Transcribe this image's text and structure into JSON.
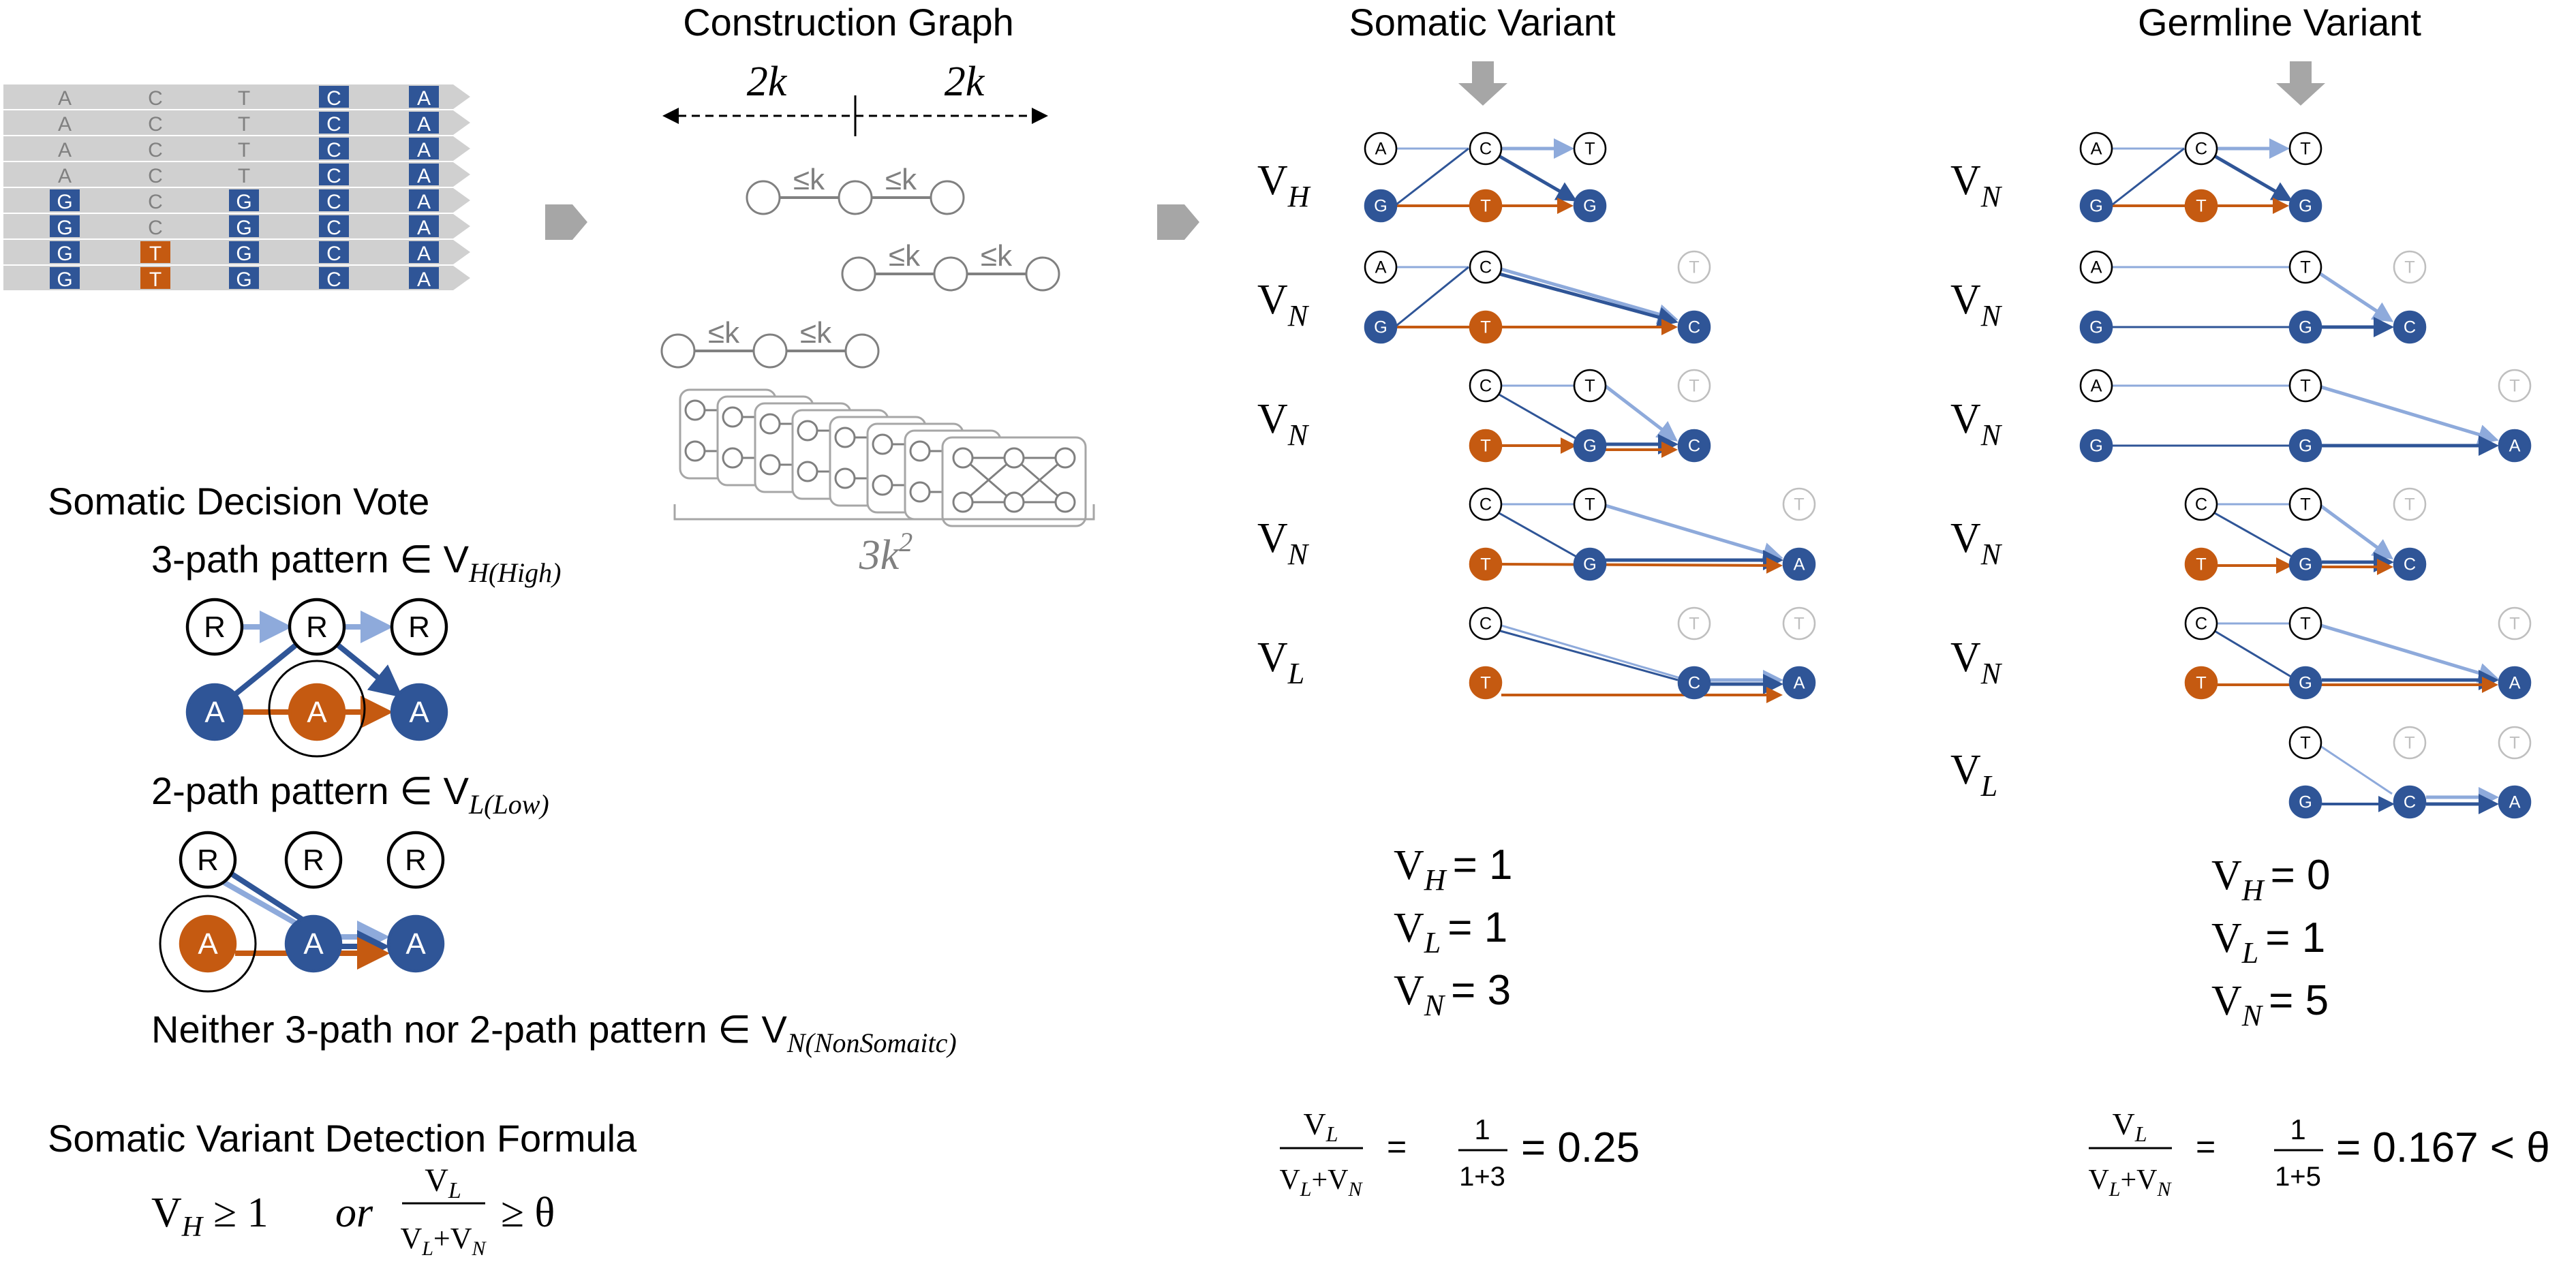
{
  "colors": {
    "blue": "#2f5597",
    "blue_light": "#8eaadb",
    "orange": "#c55a11",
    "gray_bar": "#d0d0d0",
    "gray_shape": "#a6a6a6",
    "gray_node": "#bfbfbf",
    "black": "#000000"
  },
  "reads": {
    "rows": [
      [
        "A",
        "C",
        "T",
        "C",
        "A"
      ],
      [
        "A",
        "C",
        "T",
        "C",
        "A"
      ],
      [
        "A",
        "C",
        "T",
        "C",
        "A"
      ],
      [
        "A",
        "C",
        "T",
        "C",
        "A"
      ],
      [
        "G",
        "C",
        "G",
        "C",
        "A"
      ],
      [
        "G",
        "C",
        "G",
        "C",
        "A"
      ],
      [
        "G",
        "T",
        "G",
        "C",
        "A"
      ],
      [
        "G",
        "T",
        "G",
        "C",
        "A"
      ]
    ]
  },
  "construction": {
    "title": "Construction Graph",
    "left_span": "2k",
    "right_span": "2k",
    "edge_label": "≤k",
    "total": "3k",
    "total_exp": "2"
  },
  "vote": {
    "title": "Somatic Decision Vote",
    "three_path": {
      "text": "3-path pattern ∈ V",
      "sub": "H(High)"
    },
    "two_path": {
      "text": "2-path pattern ∈ V",
      "sub": "L(Low)"
    },
    "neither": {
      "text": "Neither 3-path nor 2-path pattern ∈ V",
      "sub": "N(NonSomaitc)"
    },
    "node_ref": "R",
    "node_alt": "A"
  },
  "formula": {
    "title": "Somatic Variant Detection Formula",
    "vh": "V",
    "vh_sub": "H",
    "geq1": "≥ 1",
    "or": "or",
    "num": "V",
    "num_sub": "L",
    "den_a": "V",
    "den_a_sub": "L",
    "den_plus": "+V",
    "den_b_sub": "N",
    "geq_theta": "≥ θ"
  },
  "somatic": {
    "title": "Somatic Variant",
    "row_labels": [
      "H",
      "N",
      "N",
      "N",
      "L"
    ],
    "counts": [
      {
        "sym": "V",
        "sub": "H",
        "val": "= 1"
      },
      {
        "sym": "V",
        "sub": "L",
        "val": "= 1"
      },
      {
        "sym": "V",
        "sub": "N",
        "val": "= 3"
      }
    ],
    "ratio": {
      "num": "1",
      "den": "1+3",
      "result": "= 0.25"
    }
  },
  "germline": {
    "title": "Germline Variant",
    "row_labels": [
      "N",
      "N",
      "N",
      "N",
      "N",
      "L"
    ],
    "counts": [
      {
        "sym": "V",
        "sub": "H",
        "val": "= 0"
      },
      {
        "sym": "V",
        "sub": "L",
        "val": "= 1"
      },
      {
        "sym": "V",
        "sub": "N",
        "val": "= 5"
      }
    ],
    "ratio": {
      "num": "1",
      "den": "1+5",
      "result": "= 0.167 < θ"
    }
  }
}
